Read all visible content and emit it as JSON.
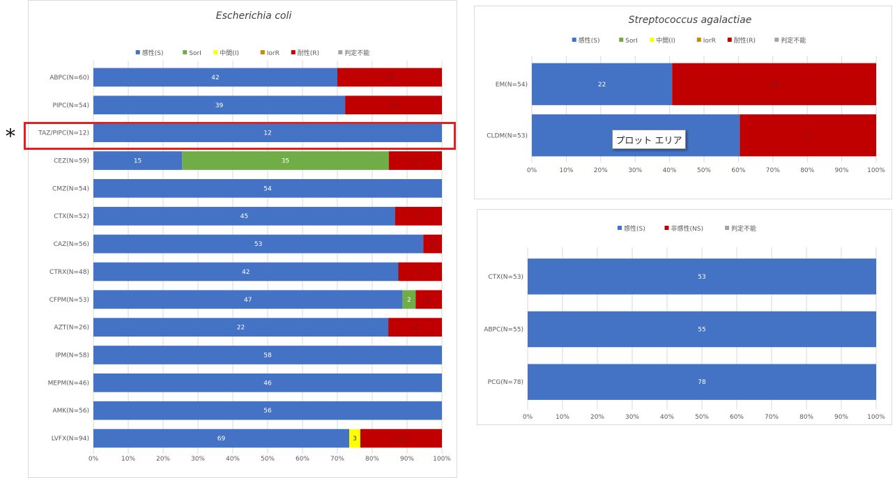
{
  "asterisk": "*",
  "tooltip": "プロット エリア",
  "chart_data": [
    {
      "type": "bar",
      "stacked": "100%",
      "orientation": "horizontal",
      "title": "Escherichia coli",
      "legend": [
        "感性(S)",
        "SorI",
        "中間(I)",
        "IorR",
        "耐性(R)",
        "判定不能"
      ],
      "legend_position": "top",
      "colors": [
        "#4472c4",
        "#70ad47",
        "#ffff00",
        "#c09000",
        "#c00000",
        "#a5a5a5"
      ],
      "categories": [
        "ABPC(N=60)",
        "PIPC(N=54)",
        "TAZ/PIPC(N=12)",
        "CEZ(N=59)",
        "CMZ(N=54)",
        "CTX(N=52)",
        "CAZ(N=56)",
        "CTRX(N=48)",
        "CFPM(N=53)",
        "AZT(N=26)",
        "IPM(N=58)",
        "MEPM(N=46)",
        "AMK(N=56)",
        "LVFX(N=94)"
      ],
      "series": [
        {
          "name": "感性(S)",
          "values": [
            42,
            39,
            12,
            15,
            54,
            45,
            53,
            42,
            47,
            22,
            58,
            46,
            56,
            69
          ]
        },
        {
          "name": "SorI",
          "values": [
            0,
            0,
            0,
            35,
            0,
            0,
            0,
            0,
            2,
            0,
            0,
            0,
            0,
            0
          ]
        },
        {
          "name": "中間(I)",
          "values": [
            0,
            0,
            0,
            0,
            0,
            0,
            0,
            0,
            0,
            0,
            0,
            0,
            0,
            3
          ]
        },
        {
          "name": "IorR",
          "values": [
            0,
            0,
            0,
            0,
            0,
            0,
            0,
            0,
            0,
            0,
            0,
            0,
            0,
            0
          ]
        },
        {
          "name": "耐性(R)",
          "values": [
            18,
            15,
            0,
            9,
            0,
            7,
            3,
            6,
            4,
            4,
            0,
            0,
            0,
            22
          ]
        },
        {
          "name": "判定不能",
          "values": [
            0,
            0,
            0,
            0,
            0,
            0,
            0,
            0,
            0,
            0,
            0,
            0,
            0,
            0
          ]
        }
      ],
      "xticks": [
        "0%",
        "10%",
        "20%",
        "30%",
        "40%",
        "50%",
        "60%",
        "70%",
        "80%",
        "90%",
        "100%"
      ],
      "xlim": [
        0,
        100
      ],
      "grid": "vertical"
    },
    {
      "type": "bar",
      "stacked": "100%",
      "orientation": "horizontal",
      "title": "Streptococcus agalactiae",
      "legend": [
        "感性(S)",
        "SorI",
        "中間(I)",
        "IorR",
        "耐性(R)",
        "判定不能"
      ],
      "legend_position": "top",
      "colors": [
        "#4472c4",
        "#70ad47",
        "#ffff00",
        "#c09000",
        "#c00000",
        "#a5a5a5"
      ],
      "categories": [
        "EM(N=54)",
        "CLDM(N=53)"
      ],
      "series": [
        {
          "name": "感性(S)",
          "values": [
            22,
            32
          ]
        },
        {
          "name": "SorI",
          "values": [
            0,
            0
          ]
        },
        {
          "name": "中間(I)",
          "values": [
            0,
            0
          ]
        },
        {
          "name": "IorR",
          "values": [
            0,
            0
          ]
        },
        {
          "name": "耐性(R)",
          "values": [
            32,
            21
          ]
        },
        {
          "name": "判定不能",
          "values": [
            0,
            0
          ]
        }
      ],
      "xticks": [
        "0%",
        "10%",
        "20%",
        "30%",
        "40%",
        "50%",
        "60%",
        "70%",
        "80%",
        "90%",
        "100%"
      ],
      "xlim": [
        0,
        100
      ],
      "grid": "vertical"
    },
    {
      "type": "bar",
      "stacked": "100%",
      "orientation": "horizontal",
      "title": "",
      "legend": [
        "感性(S)",
        "非感性(NS)",
        "判定不能"
      ],
      "legend_position": "top",
      "colors": [
        "#4472c4",
        "#c00000",
        "#a5a5a5"
      ],
      "categories": [
        "CTX(N=53)",
        "ABPC(N=55)",
        "PCG(N=78)"
      ],
      "series": [
        {
          "name": "感性(S)",
          "values": [
            53,
            55,
            78
          ]
        },
        {
          "name": "非感性(NS)",
          "values": [
            0,
            0,
            0
          ]
        },
        {
          "name": "判定不能",
          "values": [
            0,
            0,
            0
          ]
        }
      ],
      "xticks": [
        "0%",
        "10%",
        "20%",
        "30%",
        "40%",
        "50%",
        "60%",
        "70%",
        "80%",
        "90%",
        "100%"
      ],
      "xlim": [
        0,
        100
      ],
      "grid": "vertical"
    }
  ]
}
